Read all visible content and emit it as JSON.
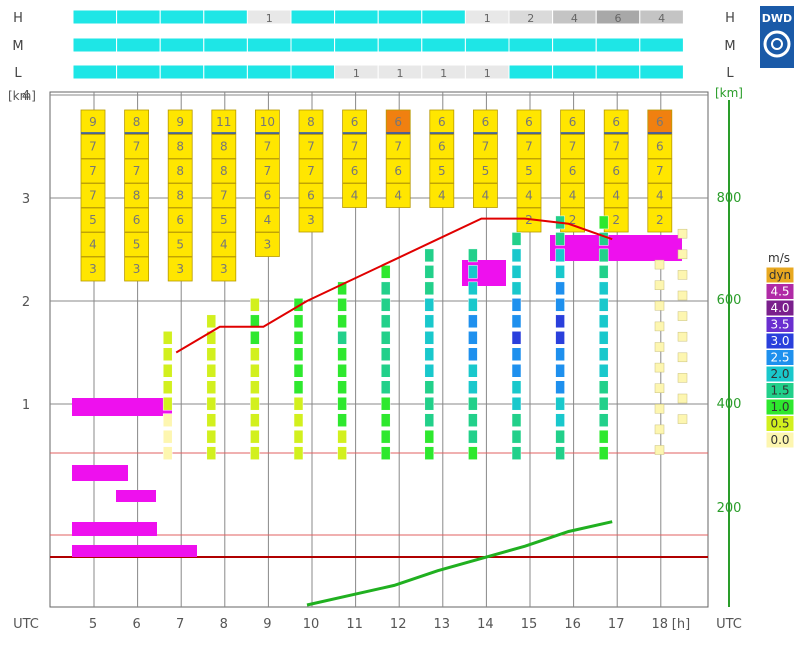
{
  "logo": {
    "text": "DWD",
    "color": "#1a5aa8"
  },
  "cloud_rows": {
    "labels_left": [
      "H",
      "M",
      "L"
    ],
    "labels_right": [
      "H",
      "M",
      "L"
    ],
    "hours": [
      "5",
      "6",
      "7",
      "8",
      "9",
      "10",
      "11",
      "12",
      "13",
      "14",
      "15",
      "16",
      "17",
      "18"
    ],
    "H": [
      "",
      "",
      "",
      "",
      "1",
      "",
      "",
      "",
      "",
      "1",
      "2",
      "4",
      "6",
      "4"
    ],
    "M": [
      "",
      "",
      "",
      "",
      "",
      "",
      "",
      "",
      "",
      "",
      "",
      "",
      "",
      ""
    ],
    "L": [
      "",
      "",
      "",
      "",
      "",
      "",
      "1",
      "1",
      "1",
      "1",
      "",
      "",
      "",
      ""
    ]
  },
  "axes": {
    "left_unit": "[km]",
    "right_unit": "[km]",
    "left_ticks": [
      "4",
      "3",
      "2",
      "1"
    ],
    "right_ticks": [
      "800",
      "600",
      "400",
      "200"
    ],
    "x_ticks": [
      "5",
      "6",
      "7",
      "8",
      "9",
      "10",
      "11",
      "12",
      "13",
      "14",
      "15",
      "16",
      "17",
      "18"
    ],
    "x_unit": "[h]",
    "utc_left": "UTC",
    "utc_right": "UTC"
  },
  "legend": {
    "title": "m/s",
    "items": [
      {
        "label": "dyn",
        "color": "#e8a820"
      },
      {
        "label": "4.5",
        "color": "#b02aa6"
      },
      {
        "label": "4.0",
        "color": "#7a1f8c"
      },
      {
        "label": "3.5",
        "color": "#6a2fd0"
      },
      {
        "label": "3.0",
        "color": "#2a3fdc"
      },
      {
        "label": "2.5",
        "color": "#1e90ee"
      },
      {
        "label": "2.0",
        "color": "#19c8cc"
      },
      {
        "label": "1.5",
        "color": "#22d08a"
      },
      {
        "label": "1.0",
        "color": "#2ee82e"
      },
      {
        "label": "0.5",
        "color": "#d2f01e"
      },
      {
        "label": "0.0",
        "color": "#fdf6b0"
      }
    ]
  },
  "chart_data": {
    "type": "table",
    "x_hours": [
      5,
      6,
      7,
      8,
      9,
      10,
      11,
      12,
      13,
      14,
      15,
      16,
      17,
      18
    ],
    "upper_cloud_boxes": {
      "top_values": [
        "9",
        "8",
        "9",
        "11",
        "10",
        "8",
        "6",
        "6",
        "6",
        "6",
        "6",
        "6",
        "6",
        "6"
      ],
      "columns": [
        [
          "9",
          "7",
          "7",
          "7",
          "5",
          "4",
          "3"
        ],
        [
          "8",
          "7",
          "7",
          "8",
          "6",
          "5",
          "3"
        ],
        [
          "9",
          "8",
          "8",
          "8",
          "6",
          "5",
          "3"
        ],
        [
          "11",
          "8",
          "8",
          "7",
          "5",
          "4",
          "3"
        ],
        [
          "10",
          "7",
          "7",
          "6",
          "4",
          "3"
        ],
        [
          "8",
          "7",
          "7",
          "6",
          "3"
        ],
        [
          "6",
          "7",
          "6",
          "4"
        ],
        [
          "6",
          "7",
          "6",
          "4"
        ],
        [
          "6",
          "6",
          "5",
          "4"
        ],
        [
          "6",
          "7",
          "5",
          "4"
        ],
        [
          "6",
          "7",
          "5",
          "4",
          "2"
        ],
        [
          "6",
          "7",
          "6",
          "4",
          "2"
        ],
        [
          "6",
          "7",
          "6",
          "4",
          "2"
        ],
        [
          "6",
          "6",
          "7",
          "4",
          "2"
        ]
      ]
    },
    "boundary_layer_height_km": [
      null,
      null,
      1.5,
      1.75,
      1.75,
      2.0,
      2.2,
      2.4,
      2.6,
      2.8,
      2.8,
      2.75,
      2.6,
      null
    ],
    "green_line_right_axis": [
      null,
      null,
      null,
      null,
      null,
      0,
      20,
      40,
      70,
      95,
      120,
      150,
      170,
      null
    ],
    "series_labels": []
  }
}
